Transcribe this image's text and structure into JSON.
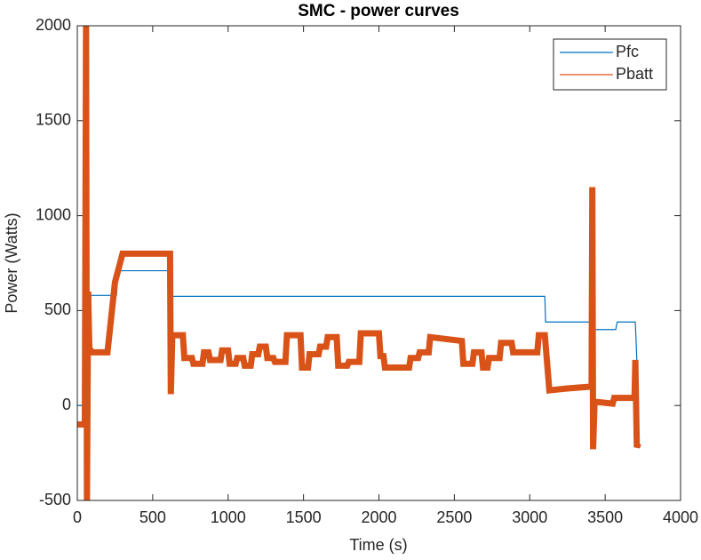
{
  "chart_data": {
    "type": "line",
    "title": "SMC - power curves",
    "x_label": "Time (s)",
    "y_label": "Power (Watts)",
    "xlim": [
      0,
      4000
    ],
    "xticks": [
      0,
      500,
      1000,
      1500,
      2000,
      2500,
      3000,
      3500,
      4000
    ],
    "ylim": [
      -500,
      2000
    ],
    "yticks": [
      -500,
      0,
      500,
      1000,
      1500,
      2000
    ],
    "legend": "northeast",
    "series": [
      {
        "name": "Pfc",
        "color": "#0072BD",
        "x": [
          0,
          60,
          75,
          90,
          260,
          270,
          615,
          620,
          3100,
          3105,
          3420,
          3425,
          3570,
          3580,
          3700,
          3710,
          3720
        ],
        "values": [
          0,
          0,
          300,
          580,
          580,
          710,
          710,
          575,
          575,
          440,
          440,
          400,
          400,
          440,
          440,
          240,
          0
        ]
      },
      {
        "name": "Pbatt",
        "color": "#D95319",
        "x": [
          0,
          50,
          58,
          64,
          72,
          80,
          100,
          200,
          250,
          300,
          600,
          615,
          620,
          630,
          700,
          710,
          760,
          770,
          830,
          840,
          870,
          880,
          950,
          960,
          1000,
          1010,
          1050,
          1060,
          1100,
          1110,
          1150,
          1160,
          1200,
          1210,
          1250,
          1260,
          1300,
          1310,
          1380,
          1390,
          1480,
          1490,
          1530,
          1540,
          1600,
          1610,
          1650,
          1660,
          1720,
          1730,
          1790,
          1800,
          1870,
          1880,
          2000,
          2010,
          2030,
          2040,
          2200,
          2210,
          2260,
          2270,
          2330,
          2340,
          2550,
          2560,
          2620,
          2630,
          2680,
          2690,
          2720,
          2730,
          2800,
          2810,
          2880,
          2890,
          3050,
          3060,
          3100,
          3130,
          3250,
          3410,
          3415,
          3420,
          3430,
          3550,
          3560,
          3695,
          3700,
          3710,
          3720
        ],
        "values": [
          -100,
          -100,
          2000,
          -500,
          600,
          300,
          280,
          280,
          650,
          800,
          800,
          800,
          60,
          370,
          370,
          250,
          250,
          220,
          220,
          280,
          280,
          240,
          240,
          290,
          290,
          220,
          220,
          250,
          250,
          210,
          210,
          270,
          270,
          310,
          310,
          250,
          250,
          230,
          230,
          370,
          370,
          200,
          200,
          270,
          270,
          310,
          310,
          360,
          360,
          210,
          210,
          230,
          230,
          380,
          380,
          260,
          260,
          200,
          200,
          250,
          250,
          280,
          280,
          360,
          340,
          220,
          220,
          280,
          280,
          200,
          200,
          250,
          250,
          330,
          330,
          280,
          280,
          370,
          370,
          80,
          90,
          100,
          1150,
          -230,
          20,
          10,
          40,
          40,
          240,
          -220,
          -200
        ]
      }
    ]
  }
}
